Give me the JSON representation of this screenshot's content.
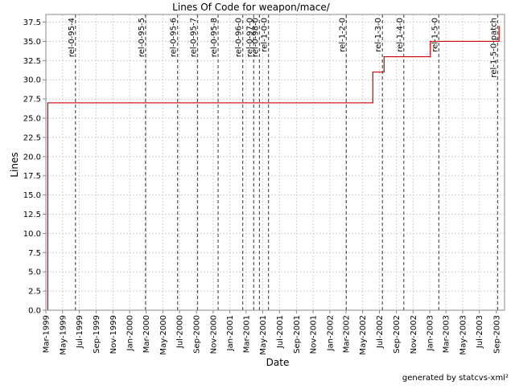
{
  "chart_data": {
    "type": "line",
    "title": "Lines Of Code for weapon/mace/",
    "xlabel": "Date",
    "ylabel": "Lines",
    "footer": "generated by statcvs-xml²",
    "x_range": [
      "1999-03-01",
      "2003-10-01"
    ],
    "ylim": [
      0,
      38.5
    ],
    "grid": true,
    "y_ticks": [
      0.0,
      2.5,
      5.0,
      7.5,
      10.0,
      12.5,
      15.0,
      17.5,
      20.0,
      22.5,
      25.0,
      27.5,
      30.0,
      32.5,
      35.0,
      37.5
    ],
    "x_ticks": [
      {
        "date": "1999-03-01",
        "label": "Mar-1999"
      },
      {
        "date": "1999-05-01",
        "label": "May-1999"
      },
      {
        "date": "1999-07-01",
        "label": "Jul-1999"
      },
      {
        "date": "1999-09-01",
        "label": "Sep-1999"
      },
      {
        "date": "1999-11-01",
        "label": "Nov-1999"
      },
      {
        "date": "2000-01-01",
        "label": "Jan-2000"
      },
      {
        "date": "2000-03-01",
        "label": "Mar-2000"
      },
      {
        "date": "2000-05-01",
        "label": "May-2000"
      },
      {
        "date": "2000-07-01",
        "label": "Jul-2000"
      },
      {
        "date": "2000-09-01",
        "label": "Sep-2000"
      },
      {
        "date": "2000-11-01",
        "label": "Nov-2000"
      },
      {
        "date": "2001-01-01",
        "label": "Jan-2001"
      },
      {
        "date": "2001-03-01",
        "label": "Mar-2001"
      },
      {
        "date": "2001-05-01",
        "label": "May-2001"
      },
      {
        "date": "2001-07-01",
        "label": "Jul-2001"
      },
      {
        "date": "2001-09-01",
        "label": "Sep-2001"
      },
      {
        "date": "2001-11-01",
        "label": "Nov-2001"
      },
      {
        "date": "2002-01-01",
        "label": "Jan-2002"
      },
      {
        "date": "2002-03-01",
        "label": "Mar-2002"
      },
      {
        "date": "2002-05-01",
        "label": "May-2002"
      },
      {
        "date": "2002-07-01",
        "label": "Jul-2002"
      },
      {
        "date": "2002-09-01",
        "label": "Sep-2002"
      },
      {
        "date": "2002-11-01",
        "label": "Nov-2002"
      },
      {
        "date": "2003-01-01",
        "label": "Jan-2003"
      },
      {
        "date": "2003-03-01",
        "label": "Mar-2003"
      },
      {
        "date": "2003-05-01",
        "label": "May-2003"
      },
      {
        "date": "2003-07-01",
        "label": "Jul-2003"
      },
      {
        "date": "2003-09-01",
        "label": "Sep-2003"
      }
    ],
    "markers": [
      {
        "label": "rel-0-95-4",
        "date": "1999-06-17"
      },
      {
        "label": "rel-0-95-5",
        "date": "2000-02-28"
      },
      {
        "label": "rel-0-95-6",
        "date": "2000-06-24"
      },
      {
        "label": "rel-0-95-7",
        "date": "2000-09-05"
      },
      {
        "label": "rel-0-95-8",
        "date": "2000-11-19"
      },
      {
        "label": "rel-0-96-0",
        "date": "2001-02-17"
      },
      {
        "label": "rel-0-97-0",
        "date": "2001-03-29"
      },
      {
        "label": "rel-0-98-0",
        "date": "2001-04-19"
      },
      {
        "label": "rel-1-0-0",
        "date": "2001-05-22"
      },
      {
        "label": "rel-1-2-0",
        "date": "2002-03-02"
      },
      {
        "label": "rel-1-3-0",
        "date": "2002-07-12"
      },
      {
        "label": "rel-1-4-0",
        "date": "2002-09-28"
      },
      {
        "label": "rel-1-5-0",
        "date": "2003-02-03"
      },
      {
        "label": "rel-1-5-0-patch",
        "date": "2003-09-06"
      }
    ],
    "series": [
      {
        "color": "#cc0000",
        "points": [
          {
            "x": "1999-03-08",
            "y": 0
          },
          {
            "x": "1999-03-08",
            "y": 27
          },
          {
            "x": "2002-06-07",
            "y": 27
          },
          {
            "x": "2002-06-07",
            "y": 31
          },
          {
            "x": "2002-07-18",
            "y": 31
          },
          {
            "x": "2002-07-18",
            "y": 33
          },
          {
            "x": "2003-01-03",
            "y": 33
          },
          {
            "x": "2003-01-03",
            "y": 35
          },
          {
            "x": "2003-09-11",
            "y": 35
          },
          {
            "x": "2003-09-11",
            "y": 37
          }
        ]
      }
    ]
  }
}
